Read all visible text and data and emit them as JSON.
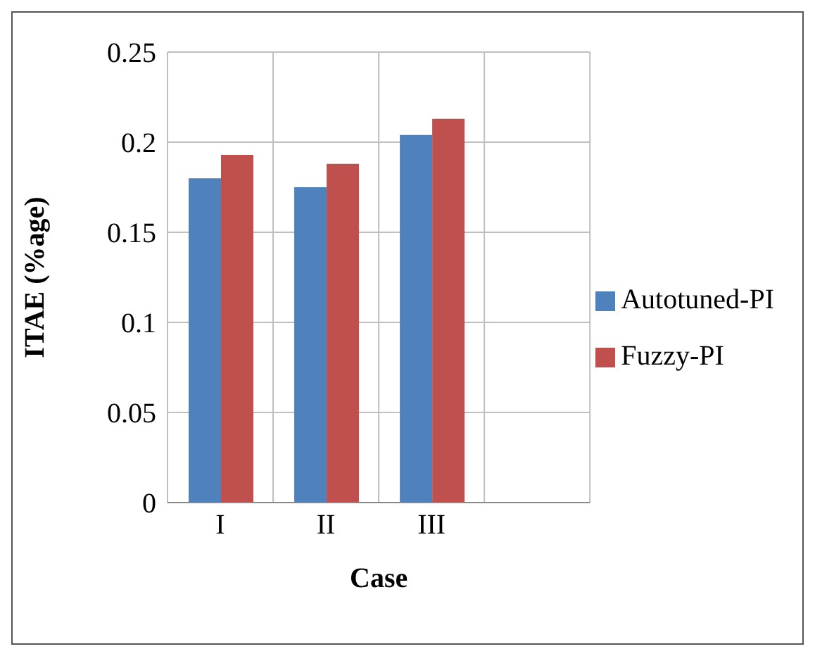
{
  "chart_data": {
    "type": "bar",
    "xlabel": "Case",
    "ylabel": "ITAE (%age)",
    "categories": [
      "I",
      "II",
      "III",
      null
    ],
    "series": [
      {
        "name": "Autotuned-PI",
        "color": "#4f81bd",
        "values": [
          0.18,
          0.175,
          0.204,
          null
        ]
      },
      {
        "name": "Fuzzy-PI",
        "color": "#c0504d",
        "values": [
          0.193,
          0.188,
          0.213,
          null
        ]
      }
    ],
    "ylim": [
      0,
      0.25
    ],
    "yticks": [
      0,
      0.05,
      0.1,
      0.15,
      0.2,
      0.25
    ],
    "grid": true,
    "legend": "right"
  }
}
